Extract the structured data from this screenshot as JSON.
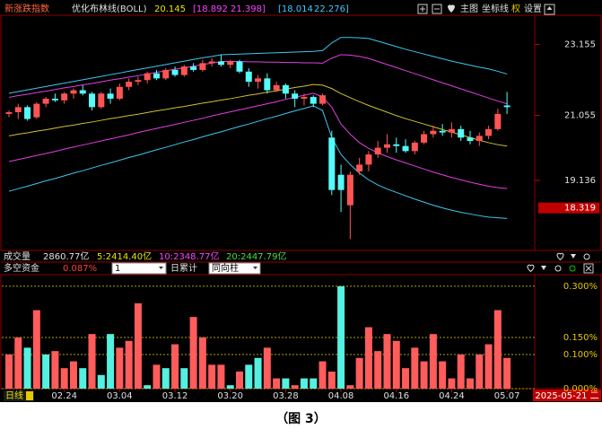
{
  "toolbar": {
    "main": "主图",
    "coord": "坐标线",
    "right": "权",
    "settings": "设置"
  },
  "chart_data": [
    {
      "type": "candlestick",
      "title": "新涨跌指数",
      "indicator": "优化布林线(BOLL)",
      "indicator_readouts": [
        {
          "text": "20.145",
          "color": "#e6e600"
        },
        {
          "text": "[18.892",
          "color": "#ff40ff"
        },
        {
          "text": "21.398]",
          "color": "#ff40ff"
        },
        {
          "text": "[18.014",
          "color": "#40c8ff"
        },
        {
          "text": "22.276]",
          "color": "#40c8ff"
        }
      ],
      "ylim": [
        17.09,
        23.99
      ],
      "yticks": [
        23.155,
        21.055,
        19.136
      ],
      "price_marker": 18.319,
      "up_color": "#ff5454",
      "down_color": "#54fcfc",
      "ohlc": [
        [
          21.1,
          21.2,
          21.0,
          21.15
        ],
        [
          21.15,
          21.4,
          20.95,
          21.3
        ],
        [
          21.3,
          21.35,
          20.9,
          20.95
        ],
        [
          21.0,
          21.45,
          20.95,
          21.4
        ],
        [
          21.4,
          21.6,
          21.3,
          21.55
        ],
        [
          21.55,
          21.7,
          21.45,
          21.5
        ],
        [
          21.5,
          21.75,
          21.4,
          21.7
        ],
        [
          21.7,
          21.85,
          21.55,
          21.8
        ],
        [
          21.8,
          21.95,
          21.65,
          21.7
        ],
        [
          21.7,
          21.75,
          21.2,
          21.3
        ],
        [
          21.3,
          21.75,
          21.25,
          21.7
        ],
        [
          21.7,
          21.85,
          21.4,
          21.55
        ],
        [
          21.55,
          22.0,
          21.5,
          21.9
        ],
        [
          21.9,
          22.15,
          21.8,
          22.05
        ],
        [
          22.05,
          22.2,
          21.95,
          22.1
        ],
        [
          22.1,
          22.35,
          22.0,
          22.3
        ],
        [
          22.3,
          22.4,
          22.1,
          22.15
        ],
        [
          22.15,
          22.45,
          22.1,
          22.4
        ],
        [
          22.4,
          22.5,
          22.2,
          22.25
        ],
        [
          22.25,
          22.55,
          22.2,
          22.5
        ],
        [
          22.5,
          22.6,
          22.35,
          22.4
        ],
        [
          22.4,
          22.7,
          22.35,
          22.6
        ],
        [
          22.6,
          22.75,
          22.5,
          22.65
        ],
        [
          22.65,
          22.85,
          22.5,
          22.55
        ],
        [
          22.55,
          22.7,
          22.45,
          22.65
        ],
        [
          22.65,
          22.7,
          22.3,
          22.35
        ],
        [
          22.35,
          22.45,
          21.9,
          22.05
        ],
        [
          22.05,
          22.25,
          21.85,
          22.15
        ],
        [
          22.15,
          22.3,
          21.7,
          21.8
        ],
        [
          21.8,
          22.05,
          21.75,
          21.95
        ],
        [
          21.95,
          22.0,
          21.55,
          21.7
        ],
        [
          21.7,
          21.8,
          21.3,
          21.55
        ],
        [
          21.55,
          21.7,
          21.35,
          21.6
        ],
        [
          21.6,
          21.65,
          21.3,
          21.4
        ],
        [
          21.4,
          21.7,
          21.35,
          21.65
        ],
        [
          20.4,
          20.6,
          18.7,
          18.85
        ],
        [
          19.3,
          19.6,
          18.2,
          18.85
        ],
        [
          18.4,
          19.4,
          17.4,
          19.3
        ],
        [
          19.4,
          19.8,
          19.3,
          19.6
        ],
        [
          19.6,
          20.0,
          19.4,
          19.9
        ],
        [
          19.9,
          20.3,
          19.8,
          20.1
        ],
        [
          20.1,
          20.5,
          19.95,
          20.2
        ],
        [
          20.2,
          20.4,
          19.95,
          20.15
        ],
        [
          20.15,
          20.35,
          19.95,
          20.0
        ],
        [
          20.0,
          20.3,
          19.9,
          20.25
        ],
        [
          20.25,
          20.6,
          20.2,
          20.5
        ],
        [
          20.5,
          20.75,
          20.4,
          20.6
        ],
        [
          20.6,
          20.8,
          20.45,
          20.55
        ],
        [
          20.55,
          20.85,
          20.4,
          20.65
        ],
        [
          20.65,
          20.75,
          20.3,
          20.4
        ],
        [
          20.4,
          20.6,
          20.2,
          20.3
        ],
        [
          20.3,
          20.55,
          20.15,
          20.45
        ],
        [
          20.45,
          20.75,
          20.35,
          20.65
        ],
        [
          20.65,
          21.25,
          20.6,
          21.1
        ],
        [
          21.35,
          21.75,
          21.1,
          21.3
        ]
      ],
      "series": [
        {
          "color": "#3cc8f0",
          "values": [
            21.71,
            21.76,
            21.81,
            21.86,
            21.91,
            21.96,
            22.01,
            22.06,
            22.11,
            22.16,
            22.21,
            22.26,
            22.31,
            22.36,
            22.41,
            22.46,
            22.51,
            22.56,
            22.61,
            22.66,
            22.71,
            22.76,
            22.8,
            22.85,
            22.86,
            22.87,
            22.88,
            22.89,
            22.9,
            22.91,
            22.92,
            22.93,
            22.94,
            22.95,
            22.97,
            23.2,
            23.36,
            23.36,
            23.35,
            23.33,
            23.25,
            23.17,
            23.09,
            23.01,
            22.94,
            22.87,
            22.8,
            22.73,
            22.66,
            22.6,
            22.54,
            22.48,
            22.43,
            22.36,
            22.28
          ]
        },
        {
          "color": "#e040e0",
          "values": [
            21.59,
            21.64,
            21.68,
            21.73,
            21.77,
            21.82,
            21.87,
            21.91,
            21.96,
            22.0,
            22.05,
            22.1,
            22.14,
            22.19,
            22.23,
            22.28,
            22.33,
            22.37,
            22.42,
            22.46,
            22.51,
            22.56,
            22.6,
            22.65,
            22.65,
            22.65,
            22.64,
            22.64,
            22.63,
            22.63,
            22.62,
            22.62,
            22.61,
            22.61,
            22.6,
            22.75,
            22.85,
            22.84,
            22.8,
            22.74,
            22.65,
            22.56,
            22.47,
            22.38,
            22.29,
            22.2,
            22.11,
            22.02,
            21.93,
            21.84,
            21.75,
            21.66,
            21.57,
            21.48,
            21.4
          ]
        },
        {
          "color": "#d0c030",
          "values": [
            20.45,
            20.5,
            20.54,
            20.59,
            20.63,
            20.68,
            20.73,
            20.77,
            20.82,
            20.86,
            20.91,
            20.96,
            21.0,
            21.05,
            21.09,
            21.14,
            21.19,
            21.23,
            21.28,
            21.32,
            21.37,
            21.42,
            21.46,
            21.51,
            21.55,
            21.6,
            21.65,
            21.69,
            21.74,
            21.78,
            21.83,
            21.88,
            21.92,
            21.97,
            21.95,
            21.85,
            21.7,
            21.58,
            21.46,
            21.35,
            21.25,
            21.15,
            21.05,
            20.96,
            20.88,
            20.8,
            20.72,
            20.64,
            20.56,
            20.48,
            20.4,
            20.32,
            20.25,
            20.19,
            20.15
          ]
        },
        {
          "color": "#e040e0",
          "values": [
            19.69,
            19.75,
            19.81,
            19.87,
            19.93,
            19.99,
            20.06,
            20.12,
            20.18,
            20.24,
            20.3,
            20.36,
            20.42,
            20.48,
            20.55,
            20.61,
            20.67,
            20.73,
            20.79,
            20.85,
            20.91,
            20.97,
            21.04,
            21.1,
            21.16,
            21.22,
            21.28,
            21.34,
            21.4,
            21.46,
            21.53,
            21.59,
            21.65,
            21.71,
            21.6,
            21.3,
            20.8,
            20.5,
            20.25,
            20.08,
            19.95,
            19.84,
            19.74,
            19.65,
            19.56,
            19.47,
            19.38,
            19.3,
            19.22,
            19.15,
            19.08,
            19.02,
            18.96,
            18.92,
            18.89
          ]
        },
        {
          "color": "#3cc8f0",
          "values": [
            18.81,
            18.89,
            18.96,
            19.04,
            19.12,
            19.19,
            19.27,
            19.35,
            19.42,
            19.5,
            19.58,
            19.65,
            19.73,
            19.81,
            19.88,
            19.96,
            20.04,
            20.11,
            20.19,
            20.27,
            20.34,
            20.42,
            20.5,
            20.57,
            20.65,
            20.73,
            20.8,
            20.88,
            20.96,
            21.03,
            21.11,
            21.19,
            21.26,
            21.34,
            21.2,
            20.4,
            19.9,
            19.6,
            19.35,
            19.15,
            19.0,
            18.88,
            18.78,
            18.68,
            18.58,
            18.49,
            18.4,
            18.32,
            18.25,
            18.19,
            18.14,
            18.09,
            18.05,
            18.03,
            18.01
          ]
        }
      ],
      "volume": {
        "label": "成交量",
        "total": "2860.77亿",
        "ma5": "5:2414.40亿",
        "ma10": "10:2348.77亿",
        "ma20": "20:2447.79亿"
      }
    },
    {
      "type": "bar",
      "title": "多空资金",
      "title_value": "0.087%",
      "period_select": "1",
      "mode_label": "日累计",
      "style_select": "同向柱",
      "ylim": [
        0,
        0.334
      ],
      "yticks": [
        {
          "value": 0.3,
          "label": "0.300%"
        },
        {
          "value": 0.15,
          "label": "0.150%"
        },
        {
          "value": 0.1,
          "label": "0.100%"
        },
        {
          "value": 0,
          "label": "0.000%"
        }
      ],
      "grid": true,
      "values": [
        0.1,
        0.15,
        0.12,
        0.23,
        0.1,
        0.11,
        0.06,
        0.08,
        0.06,
        0.16,
        0.04,
        0.16,
        0.12,
        0.14,
        0.25,
        0.01,
        0.07,
        0.06,
        0.13,
        0.06,
        0.21,
        0.15,
        0.07,
        0.07,
        0.01,
        0.05,
        0.07,
        0.09,
        0.12,
        0.03,
        0.03,
        0.01,
        0.03,
        0.03,
        0.08,
        0.05,
        0.3,
        0.01,
        0.09,
        0.18,
        0.11,
        0.16,
        0.14,
        0.06,
        0.12,
        0.08,
        0.16,
        0.08,
        0.03,
        0.1,
        0.03,
        0.1,
        0.13,
        0.23,
        0.09
      ],
      "bar_colors": [
        "#ff5c5c",
        "#ff5c5c",
        "#54f0e0",
        "#ff5c5c",
        "#54f0e0",
        "#ff5c5c",
        "#ff5c5c",
        "#ff5c5c",
        "#54f0e0",
        "#ff5c5c",
        "#54f0e0",
        "#54f0e0",
        "#ff5c5c",
        "#ff5c5c",
        "#ff5c5c",
        "#54f0e0",
        "#ff5c5c",
        "#54f0e0",
        "#ff5c5c",
        "#54f0e0",
        "#ff5c5c",
        "#ff5c5c",
        "#ff5c5c",
        "#ff5c5c",
        "#54f0e0",
        "#ff5c5c",
        "#54f0e0",
        "#54f0e0",
        "#ff5c5c",
        "#ff5c5c",
        "#54f0e0",
        "#ff5c5c",
        "#54f0e0",
        "#54f0e0",
        "#ff5c5c",
        "#ff5c5c",
        "#54f0e0",
        "#ff5c5c",
        "#ff5c5c",
        "#ff5c5c",
        "#ff5c5c",
        "#ff5c5c",
        "#ff5c5c",
        "#ff5c5c",
        "#ff5c5c",
        "#ff5c5c",
        "#ff5c5c",
        "#ff5c5c",
        "#ff5c5c",
        "#ff5c5c",
        "#ff5c5c",
        "#ff5c5c",
        "#ff5c5c",
        "#ff5c5c",
        "#ff5c5c"
      ],
      "period_label": "日线",
      "categories": [
        null,
        null,
        null,
        null,
        null,
        null,
        "02.24",
        null,
        null,
        null,
        null,
        null,
        "03.04",
        null,
        null,
        null,
        null,
        null,
        "03.12",
        null,
        null,
        null,
        null,
        null,
        "03.20",
        null,
        null,
        null,
        null,
        null,
        "03.28",
        null,
        null,
        null,
        null,
        null,
        "04.08",
        null,
        null,
        null,
        null,
        null,
        "04.16",
        null,
        null,
        null,
        null,
        null,
        "04.24",
        null,
        null,
        null,
        null,
        null,
        "05.07"
      ],
      "current_date": "2025-05-21 二"
    }
  ],
  "caption": "（图 3）"
}
